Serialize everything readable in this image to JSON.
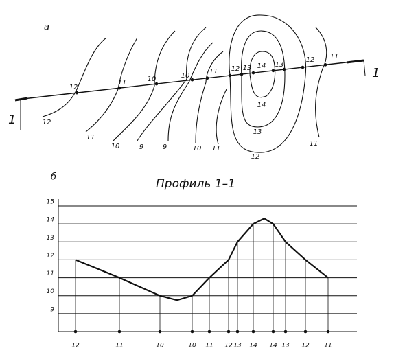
{
  "map": {
    "letter": "а",
    "section_ends": [
      "1",
      "1"
    ],
    "labels": [
      "12",
      "11",
      "10",
      "10",
      "11",
      "12",
      "13",
      "14",
      "13",
      "12",
      "11",
      "12",
      "11",
      "10",
      "9",
      "9",
      "10",
      "11",
      "14",
      "13",
      "12",
      "11"
    ]
  },
  "profile_letter": "б",
  "chart_data": {
    "type": "line",
    "title": "Профиль 1–1",
    "categories": [
      "12",
      "11",
      "10",
      null,
      "10",
      "11",
      "12",
      "13",
      "14",
      null,
      "14",
      "13",
      "12",
      "11"
    ],
    "values": [
      12,
      11,
      10,
      9.75,
      10,
      11,
      12,
      13,
      14,
      14.3,
      14,
      13,
      12,
      11
    ],
    "color": "#111111",
    "ylim": [
      8,
      15
    ],
    "yticks": [
      9,
      10,
      11,
      12,
      13,
      14,
      15
    ],
    "grid": true
  }
}
